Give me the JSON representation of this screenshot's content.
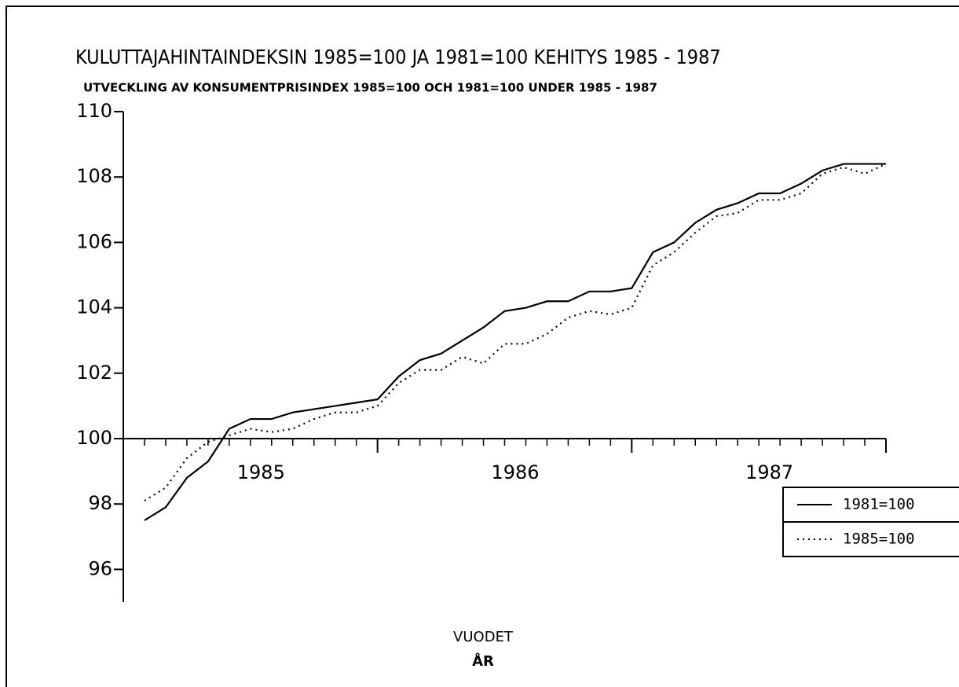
{
  "chart_data": {
    "type": "line",
    "title": "KULUTTAJAHINTAINDEKSIN 1985=100 JA 1981=100 KEHITYS 1985 - 1987",
    "subtitle": "UTVECKLING AV KONSUMENTPRISINDEX 1985=100 OCH 1981=100 UNDER 1985 - 1987",
    "x_label": "VUODET",
    "x_label_2": "ÅR",
    "x": [
      1,
      2,
      3,
      4,
      5,
      6,
      7,
      8,
      9,
      10,
      11,
      12,
      13,
      14,
      15,
      16,
      17,
      18,
      19,
      20,
      21,
      22,
      23,
      24,
      25,
      26,
      27,
      28,
      29,
      30,
      31,
      32,
      33,
      34,
      35,
      36
    ],
    "series": [
      {
        "name": "1981=100",
        "color": "#000000",
        "dash": "solid",
        "values": [
          97.5,
          97.9,
          98.8,
          99.3,
          100.3,
          100.6,
          100.6,
          100.8,
          100.9,
          101.0,
          101.1,
          101.2,
          101.9,
          102.4,
          102.6,
          103.0,
          103.4,
          103.9,
          104.0,
          104.2,
          104.2,
          104.5,
          104.5,
          104.6,
          105.7,
          106.0,
          106.6,
          107.0,
          107.2,
          107.5,
          107.5,
          107.8,
          108.2,
          108.4,
          108.4,
          108.4
        ]
      },
      {
        "name": "1985=100",
        "color": "#000000",
        "dash": "dotted",
        "values": [
          98.1,
          98.5,
          99.4,
          99.9,
          100.1,
          100.3,
          100.2,
          100.3,
          100.6,
          100.8,
          100.8,
          101.0,
          101.7,
          102.1,
          102.1,
          102.5,
          102.3,
          102.9,
          102.9,
          103.2,
          103.7,
          103.9,
          103.8,
          104.0,
          105.3,
          105.7,
          106.3,
          106.8,
          106.9,
          107.3,
          107.3,
          107.5,
          108.1,
          108.3,
          108.1,
          108.4
        ]
      }
    ],
    "xlim": [
      0,
      36
    ],
    "xticks": [
      0,
      12,
      24,
      36
    ],
    "xtick_labels": [
      {
        "value": 6.5,
        "label": "1985"
      },
      {
        "value": 18.5,
        "label": "1986"
      },
      {
        "value": 30.5,
        "label": "1987"
      }
    ],
    "x_axis_at": 100,
    "ylim": [
      95,
      110
    ],
    "yticks": [
      96,
      98,
      100,
      102,
      104,
      106,
      108,
      110
    ],
    "legend": "lower right"
  }
}
